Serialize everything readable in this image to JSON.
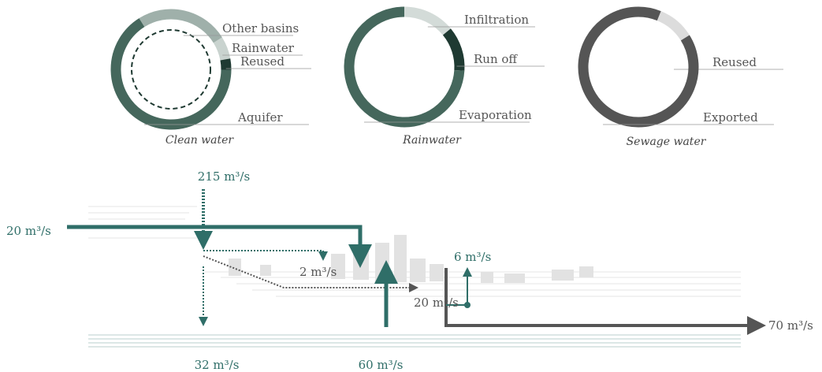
{
  "donuts": [
    {
      "caption": "Clean water",
      "segments": [
        {
          "label": "Other basins",
          "value": 25,
          "color": "#9fb0aa"
        },
        {
          "label": "Rainwater",
          "value": 6,
          "color": "#c9d3cf"
        },
        {
          "label": "Reused",
          "value": 3,
          "color": "#1f3a32"
        },
        {
          "label": "Aquifer",
          "value": 66,
          "color": "#45675c"
        }
      ]
    },
    {
      "caption": "Rainwater",
      "segments": [
        {
          "label": "Infiltration",
          "value": 14,
          "color": "#d3dbd8"
        },
        {
          "label": "Run off",
          "value": 12,
          "color": "#1f3a32"
        },
        {
          "label": "Evaporation",
          "value": 74,
          "color": "#45675c"
        }
      ]
    },
    {
      "caption": "Sewage water",
      "segments": [
        {
          "label": "Reused",
          "value": 10,
          "color": "#dcdcdc"
        },
        {
          "label": "Exported",
          "value": 90,
          "color": "#555555"
        }
      ]
    }
  ],
  "flow_labels": [
    "215 m³/s",
    "20 m³/s",
    "2 m³/s",
    "32 m³/s",
    "60 m³/s",
    "20 m³/s",
    "6 m³/s",
    "70 m³/s"
  ]
}
